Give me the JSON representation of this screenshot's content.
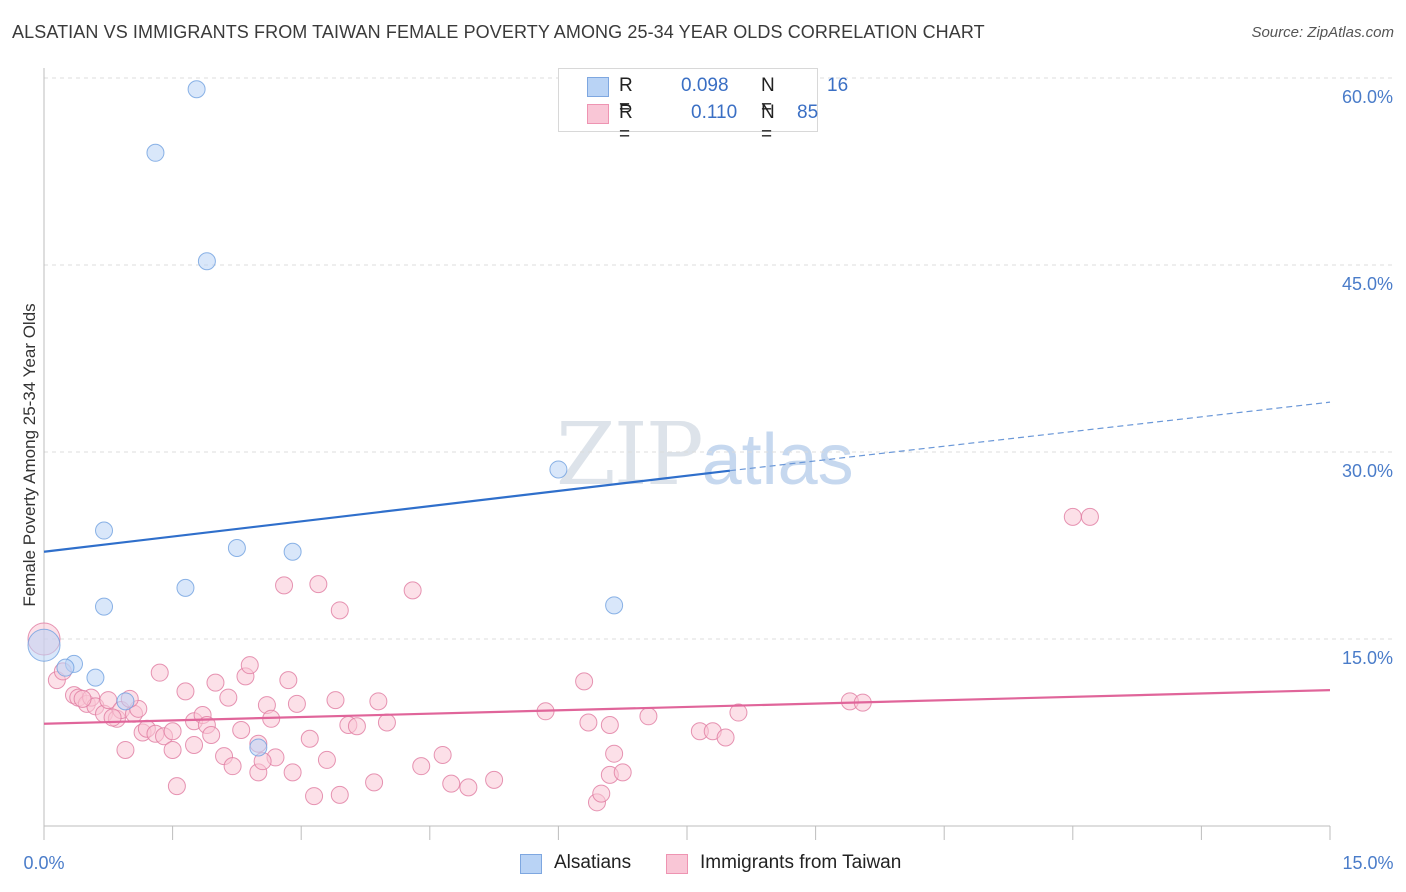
{
  "title": "ALSATIAN VS IMMIGRANTS FROM TAIWAN FEMALE POVERTY AMONG 25-34 YEAR OLDS CORRELATION CHART",
  "source": "Source: ZipAtlas.com",
  "watermark": {
    "zip": "ZIP",
    "atlas": "atlas"
  },
  "legend": {
    "r_label": "R =",
    "n_label": "N =",
    "rows": [
      {
        "name": "Alsatians",
        "r": "0.098",
        "n": "16",
        "fill": "#b9d3f5",
        "stroke": "#7ea7e0"
      },
      {
        "name": "Immigrants from Taiwan",
        "r": "0.110",
        "n": "85",
        "fill": "#f9c6d6",
        "stroke": "#ee94b2"
      }
    ]
  },
  "chart_data": {
    "type": "scatter",
    "title": "ALSATIAN VS IMMIGRANTS FROM TAIWAN FEMALE POVERTY AMONG 25-34 YEAR OLDS CORRELATION CHART",
    "xlabel": "",
    "ylabel": "Female Poverty Among 25-34 Year Olds",
    "xlim": [
      0,
      15
    ],
    "ylim": [
      0,
      60
    ],
    "x_tick_labels": [
      "0.0%",
      "15.0%"
    ],
    "y_ticks": [
      15,
      30,
      45,
      60
    ],
    "y_tick_labels": [
      "15.0%",
      "30.0%",
      "45.0%",
      "60.0%"
    ],
    "grid": true,
    "series": [
      {
        "name": "Alsatians",
        "color": "#6fa0e0",
        "fill": "#b9d3f5",
        "points": [
          [
            0.0,
            14.5
          ],
          [
            0.35,
            13.0
          ],
          [
            0.6,
            11.9
          ],
          [
            0.95,
            10.0
          ],
          [
            0.7,
            17.6
          ],
          [
            0.7,
            23.7
          ],
          [
            1.65,
            19.1
          ],
          [
            2.25,
            22.3
          ],
          [
            2.9,
            22.0
          ],
          [
            2.5,
            6.3
          ],
          [
            1.3,
            54.0
          ],
          [
            1.78,
            59.1
          ],
          [
            1.9,
            45.3
          ],
          [
            6.0,
            28.6
          ],
          [
            6.65,
            17.7
          ],
          [
            0.25,
            12.7
          ]
        ],
        "trend": {
          "x0": 0.0,
          "y0": 22.0,
          "x1": 8.0,
          "y1": 28.5,
          "dashed_to_x": 15.0,
          "dashed_to_y": 34.0
        }
      },
      {
        "name": "Immigrants from Taiwan",
        "color": "#e07aa0",
        "fill": "#f9c6d6",
        "points": [
          [
            0.0,
            15.0
          ],
          [
            0.15,
            11.7
          ],
          [
            0.22,
            12.4
          ],
          [
            0.35,
            10.5
          ],
          [
            0.4,
            10.3
          ],
          [
            0.5,
            9.8
          ],
          [
            0.55,
            10.3
          ],
          [
            0.6,
            9.6
          ],
          [
            0.7,
            9.0
          ],
          [
            0.75,
            10.1
          ],
          [
            0.85,
            8.6
          ],
          [
            0.9,
            9.3
          ],
          [
            0.95,
            6.1
          ],
          [
            1.05,
            9.0
          ],
          [
            1.1,
            9.4
          ],
          [
            1.15,
            7.5
          ],
          [
            1.2,
            7.8
          ],
          [
            1.3,
            7.4
          ],
          [
            1.35,
            12.3
          ],
          [
            1.4,
            7.2
          ],
          [
            1.5,
            7.6
          ],
          [
            1.5,
            6.1
          ],
          [
            1.55,
            3.2
          ],
          [
            1.65,
            10.8
          ],
          [
            1.75,
            6.5
          ],
          [
            1.75,
            8.4
          ],
          [
            1.85,
            8.9
          ],
          [
            1.9,
            8.1
          ],
          [
            1.95,
            7.3
          ],
          [
            2.0,
            11.5
          ],
          [
            2.1,
            5.6
          ],
          [
            2.15,
            10.3
          ],
          [
            2.2,
            4.8
          ],
          [
            2.3,
            7.7
          ],
          [
            2.35,
            12.0
          ],
          [
            2.4,
            12.9
          ],
          [
            2.5,
            6.6
          ],
          [
            2.5,
            4.3
          ],
          [
            2.6,
            9.7
          ],
          [
            2.65,
            8.6
          ],
          [
            2.7,
            5.5
          ],
          [
            2.8,
            19.3
          ],
          [
            2.85,
            11.7
          ],
          [
            2.9,
            4.3
          ],
          [
            2.95,
            9.8
          ],
          [
            3.1,
            7.0
          ],
          [
            3.15,
            2.4
          ],
          [
            3.2,
            19.4
          ],
          [
            3.3,
            5.3
          ],
          [
            3.4,
            10.1
          ],
          [
            3.45,
            17.3
          ],
          [
            3.45,
            2.5
          ],
          [
            3.55,
            8.1
          ],
          [
            3.65,
            8.0
          ],
          [
            3.85,
            3.5
          ],
          [
            4.0,
            8.3
          ],
          [
            4.3,
            18.9
          ],
          [
            4.4,
            4.8
          ],
          [
            4.65,
            5.7
          ],
          [
            4.75,
            3.4
          ],
          [
            4.95,
            3.1
          ],
          [
            5.25,
            3.7
          ],
          [
            5.85,
            9.2
          ],
          [
            6.3,
            11.6
          ],
          [
            6.35,
            8.3
          ],
          [
            6.45,
            1.9
          ],
          [
            6.5,
            2.6
          ],
          [
            6.6,
            4.1
          ],
          [
            6.65,
            5.8
          ],
          [
            6.75,
            4.3
          ],
          [
            6.6,
            8.1
          ],
          [
            7.05,
            8.8
          ],
          [
            7.65,
            7.6
          ],
          [
            7.8,
            7.6
          ],
          [
            7.95,
            7.1
          ],
          [
            8.1,
            9.1
          ],
          [
            9.4,
            10.0
          ],
          [
            9.55,
            9.9
          ],
          [
            12.0,
            24.8
          ],
          [
            12.2,
            24.8
          ],
          [
            0.45,
            10.2
          ],
          [
            0.8,
            8.7
          ],
          [
            1.0,
            10.2
          ],
          [
            2.55,
            5.2
          ],
          [
            3.9,
            10.0
          ]
        ],
        "trend": {
          "x0": 0.0,
          "y0": 8.2,
          "x1": 15.0,
          "y1": 10.9
        }
      }
    ]
  }
}
